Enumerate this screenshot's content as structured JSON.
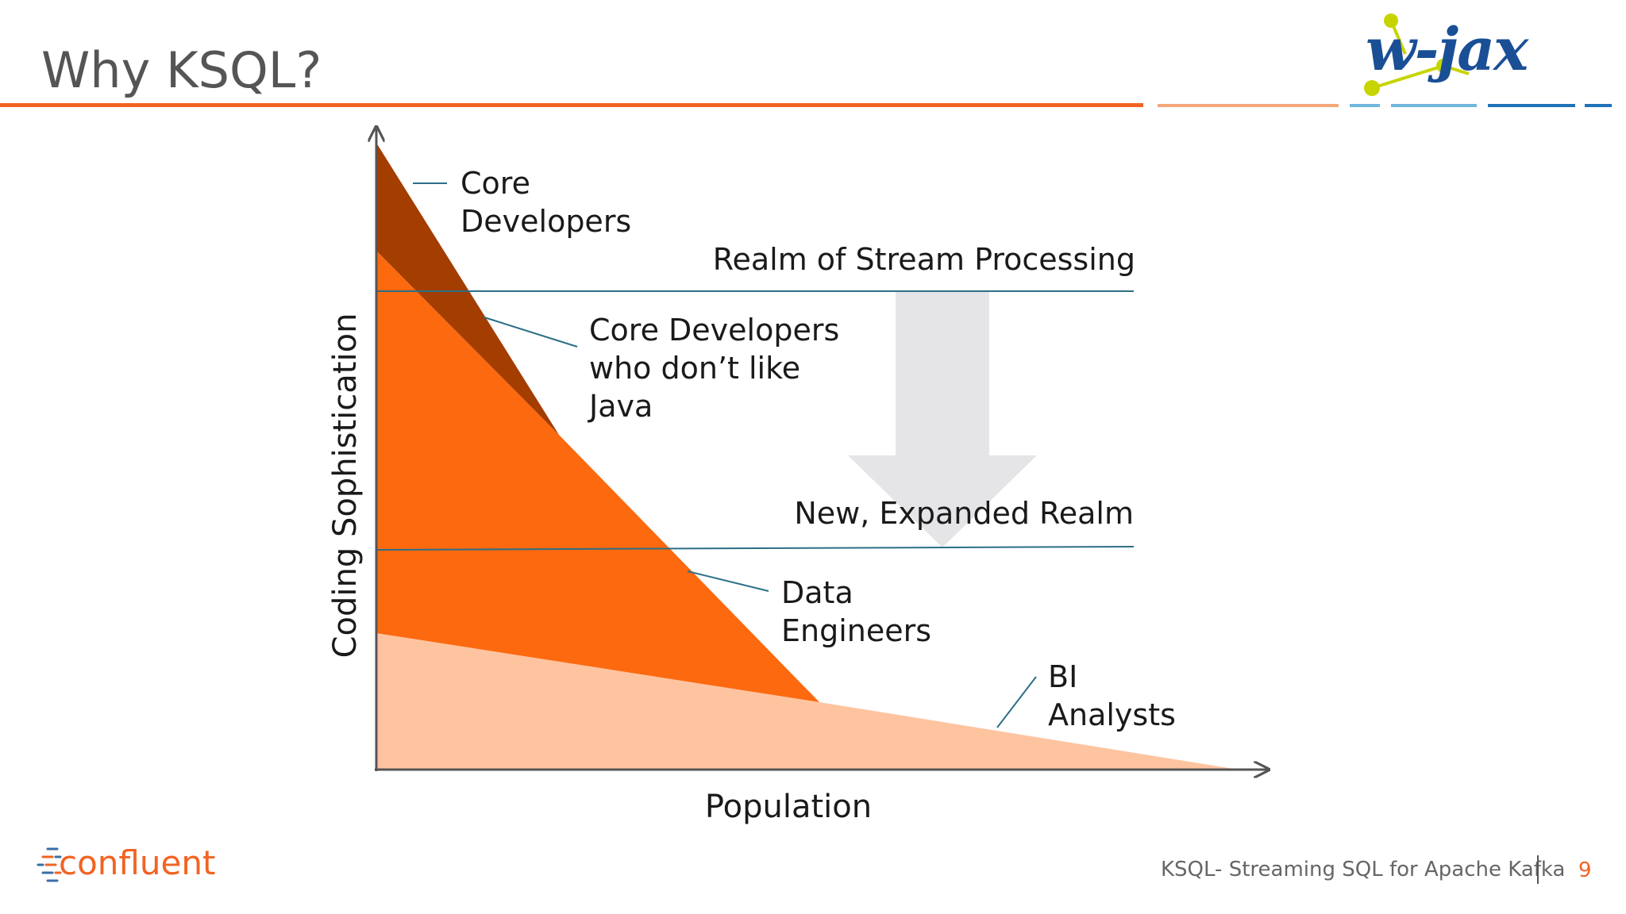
{
  "slide": {
    "title": "Why KSQL?",
    "footer_text": "KSQL- Streaming SQL for Apache Kafka",
    "page_number": "9"
  },
  "logos": {
    "left": "confluent",
    "right": "w-jax"
  },
  "diagram": {
    "y_axis_label": "Coding Sophistication",
    "x_axis_label": "Population",
    "realm_top_label": "Realm of Stream Processing",
    "realm_bottom_label": "New, Expanded Realm",
    "groups": {
      "core_developers": [
        "Core",
        "Developers"
      ],
      "core_no_java": [
        "Core Developers",
        "who don’t like",
        "Java"
      ],
      "data_engineers": [
        "Data",
        "Engineers"
      ],
      "bi_analysts": [
        "BI",
        "Analysts"
      ]
    },
    "colors": {
      "core_developers": "#a33d00",
      "data_engineers": "#fc690f",
      "bi_analysts": "#fec4a0",
      "realm_line": "#2b6f86",
      "arrow": "#e5e5e8",
      "accent": "#f26322"
    }
  }
}
